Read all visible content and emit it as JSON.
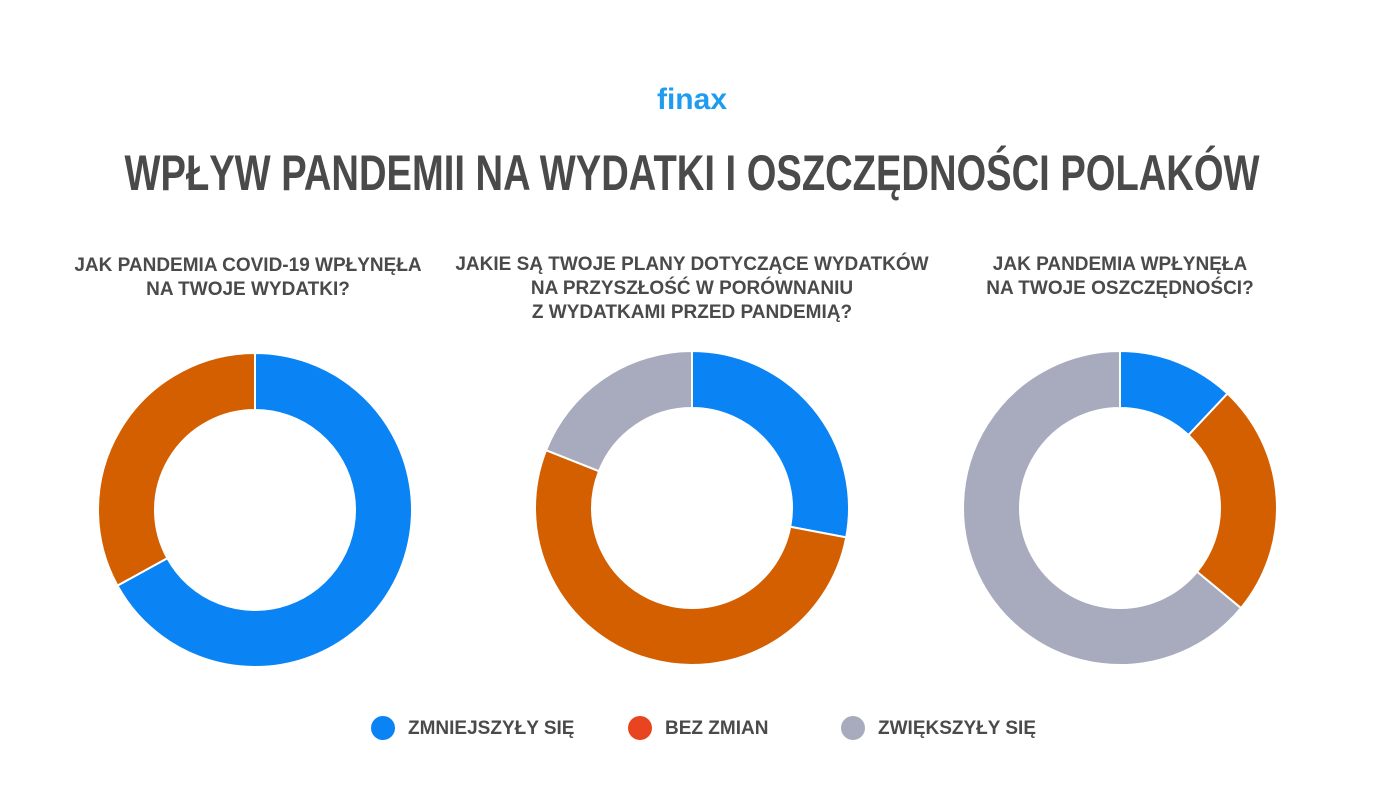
{
  "logo": "finax",
  "title": "WPŁYW PANDEMII NA WYDATKI I OSZCZĘDNOŚCI POLAKÓW",
  "legend": [
    {
      "label": "ZMNIEJSZYŁY SIĘ",
      "color": "#0a84f5"
    },
    {
      "label": "BEZ ZMIAN",
      "color": "#e8441f"
    },
    {
      "label": "ZWIĘKSZYŁY SIĘ",
      "color": "#a8abbd"
    }
  ],
  "chart_data": [
    {
      "type": "pie",
      "title": [
        "JAK PANDEMIA COVID-19 WPŁYNĘŁA",
        "NA TWOJE WYDATKI?"
      ],
      "values": [
        67,
        33
      ],
      "colors": [
        "#0a84f5",
        "#d35f00"
      ]
    },
    {
      "type": "pie",
      "title": [
        "JAKIE SĄ TWOJE PLANY DOTYCZĄCE WYDATKÓW",
        "NA PRZYSZŁOŚĆ W PORÓWNANIU",
        "Z WYDATKAMI PRZED PANDEMIĄ?"
      ],
      "values": [
        28,
        53,
        19
      ],
      "colors": [
        "#0a84f5",
        "#d35f00",
        "#a8abbd"
      ]
    },
    {
      "type": "pie",
      "title": [
        "JAK PANDEMIA WPŁYNĘŁA",
        "NA TWOJE OSZCZĘDNOŚCI?"
      ],
      "values": [
        12,
        24,
        64
      ],
      "colors": [
        "#0a84f5",
        "#d35f00",
        "#a8abbd"
      ]
    }
  ]
}
